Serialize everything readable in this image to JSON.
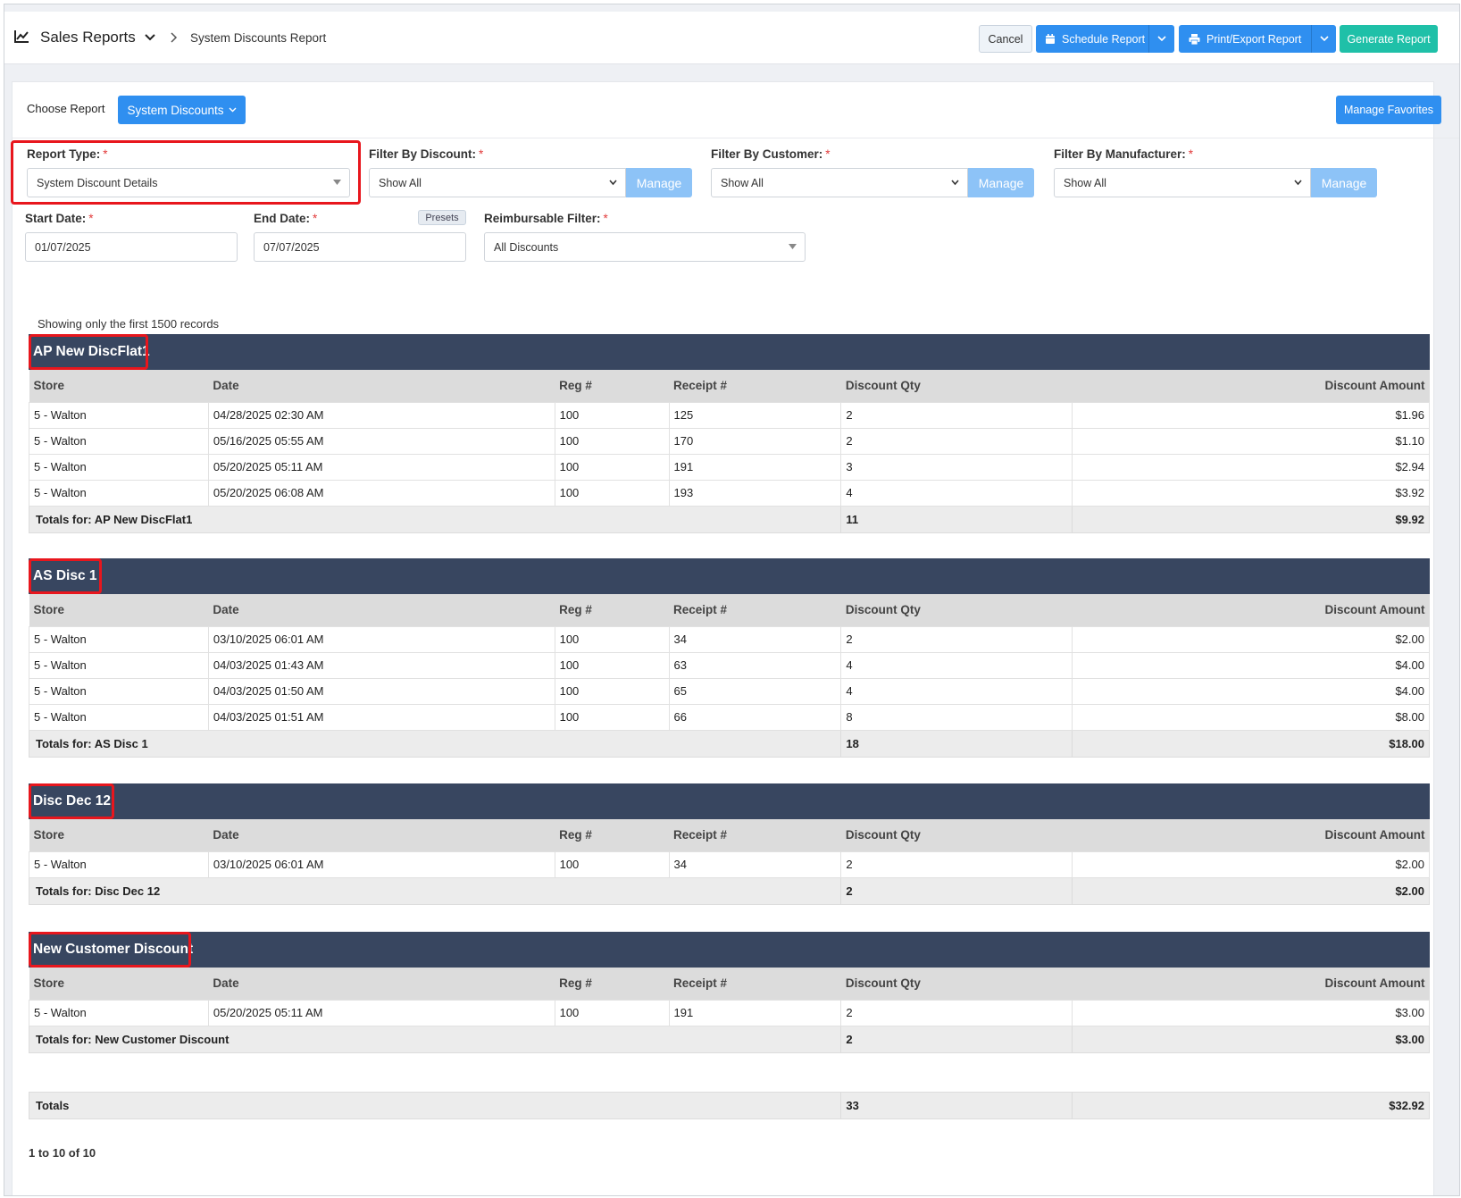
{
  "header": {
    "app_title": "Sales Reports",
    "breadcrumb": "System Discounts Report",
    "cancel_label": "Cancel",
    "schedule_label": "Schedule Report",
    "print_label": "Print/Export Report",
    "generate_label": "Generate Report"
  },
  "toolbar": {
    "choose_label": "Choose Report",
    "choose_value": "System Discounts",
    "favorites_label": "Manage Favorites"
  },
  "filters": {
    "report_type": {
      "label": "Report Type:",
      "value": "System Discount Details"
    },
    "discount": {
      "label": "Filter By Discount:",
      "value": "Show All",
      "manage": "Manage"
    },
    "customer": {
      "label": "Filter By Customer:",
      "value": "Show All",
      "manage": "Manage"
    },
    "manufacturer": {
      "label": "Filter By Manufacturer:",
      "value": "Show All",
      "manage": "Manage"
    },
    "start_date": {
      "label": "Start Date:",
      "value": "01/07/2025"
    },
    "end_date": {
      "label": "End Date:",
      "value": "07/07/2025"
    },
    "presets_label": "Presets",
    "reimbursable": {
      "label": "Reimbursable Filter:",
      "value": "All Discounts"
    },
    "required_mark": "*"
  },
  "report": {
    "showing_note": "Showing only the first 1500 records",
    "columns": [
      "Store",
      "Date",
      "Reg #",
      "Receipt #",
      "Discount Qty",
      "Discount Amount"
    ],
    "groups": [
      {
        "name": "AP New DiscFlat1",
        "rows": [
          [
            "5 - Walton",
            "04/28/2025 02:30 AM",
            "100",
            "125",
            "2",
            "$1.96"
          ],
          [
            "5 - Walton",
            "05/16/2025 05:55 AM",
            "100",
            "170",
            "2",
            "$1.10"
          ],
          [
            "5 - Walton",
            "05/20/2025 05:11 AM",
            "100",
            "191",
            "3",
            "$2.94"
          ],
          [
            "5 - Walton",
            "05/20/2025 06:08 AM",
            "100",
            "193",
            "4",
            "$3.92"
          ]
        ],
        "totals_label": "Totals for: AP New DiscFlat1",
        "total_qty": "11",
        "total_amount": "$9.92"
      },
      {
        "name": "AS Disc 1",
        "rows": [
          [
            "5 - Walton",
            "03/10/2025 06:01 AM",
            "100",
            "34",
            "2",
            "$2.00"
          ],
          [
            "5 - Walton",
            "04/03/2025 01:43 AM",
            "100",
            "63",
            "4",
            "$4.00"
          ],
          [
            "5 - Walton",
            "04/03/2025 01:50 AM",
            "100",
            "65",
            "4",
            "$4.00"
          ],
          [
            "5 - Walton",
            "04/03/2025 01:51 AM",
            "100",
            "66",
            "8",
            "$8.00"
          ]
        ],
        "totals_label": "Totals for: AS Disc 1",
        "total_qty": "18",
        "total_amount": "$18.00"
      },
      {
        "name": "Disc Dec 12",
        "rows": [
          [
            "5 - Walton",
            "03/10/2025 06:01 AM",
            "100",
            "34",
            "2",
            "$2.00"
          ]
        ],
        "totals_label": "Totals for: Disc Dec 12",
        "total_qty": "2",
        "total_amount": "$2.00"
      },
      {
        "name": "New Customer Discount",
        "rows": [
          [
            "5 - Walton",
            "05/20/2025 05:11 AM",
            "100",
            "191",
            "2",
            "$3.00"
          ]
        ],
        "totals_label": "Totals for: New Customer Discount",
        "total_qty": "2",
        "total_amount": "$3.00"
      }
    ],
    "grand_totals": {
      "label": "Totals",
      "qty": "33",
      "amount": "$32.92"
    },
    "pager": "1 to 10 of 10"
  },
  "colors": {
    "primary": "#2f8ff0",
    "generate": "#1fc0a8",
    "group_header": "#384660",
    "highlight": "#e8161d"
  }
}
